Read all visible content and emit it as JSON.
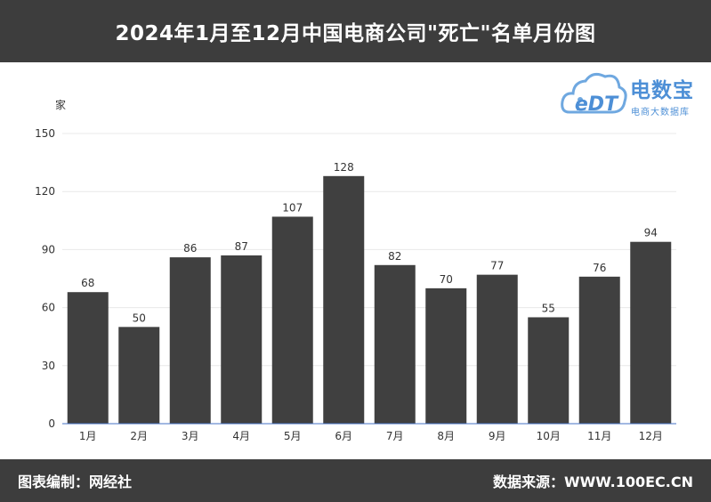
{
  "header": {
    "title": "2024年1月至12月中国电商公司\"死亡\"名单月份图"
  },
  "logo": {
    "brand": "电数宝",
    "tagline": "电商大数据库",
    "mark_text": "eDT"
  },
  "footer": {
    "left": "图表编制：网经社",
    "right": "数据来源：WWW.100EC.CN"
  },
  "colors": {
    "bar": "#404040",
    "header_bg": "#3d3d3d",
    "logo": "#4d8fd6",
    "axis": "#4472c4",
    "grid": "#e8e8e8"
  },
  "chart_data": {
    "type": "bar",
    "title": "2024年1月至12月中国电商公司\"死亡\"名单月份图",
    "ylabel": "家",
    "xlabel": "",
    "categories": [
      "1月",
      "2月",
      "3月",
      "4月",
      "5月",
      "6月",
      "7月",
      "8月",
      "9月",
      "10月",
      "11月",
      "12月"
    ],
    "values": [
      68,
      50,
      86,
      87,
      107,
      128,
      82,
      70,
      77,
      55,
      76,
      94
    ],
    "ylim": [
      0,
      150
    ],
    "yticks": [
      0,
      30,
      60,
      90,
      120,
      150
    ],
    "grid": true,
    "data_labels": true
  }
}
